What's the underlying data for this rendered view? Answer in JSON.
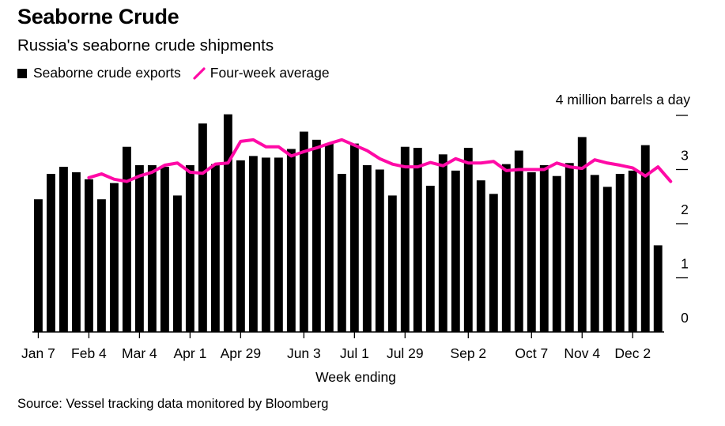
{
  "title": "Seaborne Crude",
  "subtitle": "Russia's seaborne crude shipments",
  "source": "Source: Vessel tracking data monitored by Bloomberg",
  "colors": {
    "bars": "#000000",
    "average": "#ff0aa6",
    "axis": "#000000"
  },
  "chart_data": {
    "type": "bar",
    "xlabel": "Week ending",
    "ylabel": "4 million barrels a day",
    "ylim": [
      0,
      4
    ],
    "yticks": [
      0,
      1,
      2,
      3,
      4
    ],
    "ytick_labels": [
      "0",
      "1",
      "2",
      "3",
      ""
    ],
    "xtick_labels": [
      "Jan 7",
      "Feb 4",
      "Mar 4",
      "Apr 1",
      "Apr 29",
      "Jun 3",
      "Jul 1",
      "Jul 29",
      "Sep 2",
      "Oct 7",
      "Nov 4",
      "Dec 2"
    ],
    "xtick_index": [
      0,
      4,
      8,
      12,
      16,
      21,
      25,
      29,
      34,
      39,
      43,
      47
    ],
    "legend": "top-left",
    "grid": false,
    "series": [
      {
        "name": "Seaborne crude exports",
        "type": "bar",
        "values": [
          2.45,
          2.92,
          3.05,
          2.95,
          2.82,
          2.45,
          2.75,
          3.42,
          3.08,
          3.08,
          3.05,
          2.52,
          3.08,
          3.85,
          3.1,
          4.02,
          3.17,
          3.25,
          3.22,
          3.22,
          3.38,
          3.7,
          3.55,
          3.48,
          2.92,
          3.48,
          3.08,
          3.0,
          2.52,
          3.42,
          3.4,
          2.7,
          3.28,
          2.98,
          3.4,
          2.8,
          2.55,
          3.1,
          3.35,
          2.95,
          3.08,
          2.88,
          3.12,
          3.6,
          2.9,
          2.68,
          2.92,
          2.98,
          3.45,
          1.6
        ]
      },
      {
        "name": "Four-week average",
        "type": "line",
        "start_index": 4,
        "values": [
          2.85,
          2.92,
          2.82,
          2.78,
          2.88,
          2.95,
          3.08,
          3.12,
          2.95,
          2.93,
          3.1,
          3.12,
          3.52,
          3.55,
          3.42,
          3.42,
          3.25,
          3.33,
          3.4,
          3.48,
          3.55,
          3.45,
          3.35,
          3.2,
          3.1,
          3.05,
          3.05,
          3.13,
          3.07,
          3.2,
          3.12,
          3.12,
          3.15,
          2.98,
          3.0,
          3.0,
          3.0,
          3.12,
          3.05,
          3.02,
          3.18,
          3.12,
          3.08,
          3.03,
          2.88,
          3.05,
          2.78
        ]
      }
    ]
  }
}
